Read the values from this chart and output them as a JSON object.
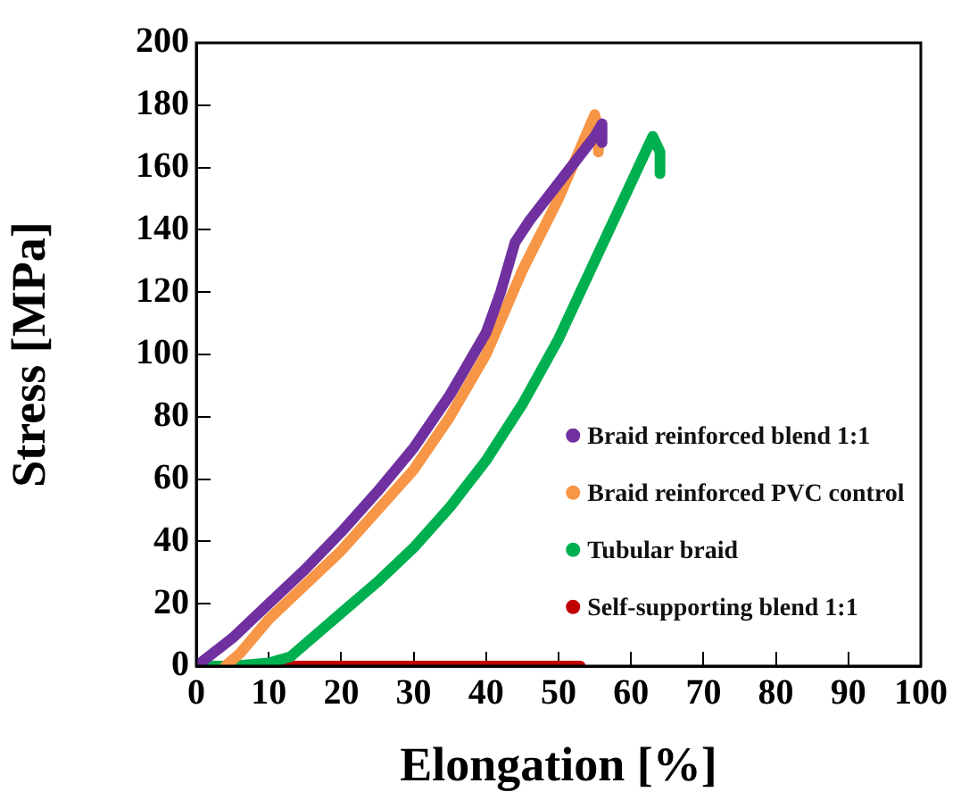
{
  "chart_data": {
    "type": "line",
    "xlabel": "Elongation [%]",
    "ylabel": "Stress [MPa]",
    "xlim": [
      0,
      100
    ],
    "ylim": [
      0,
      200
    ],
    "xticks": [
      0,
      10,
      20,
      30,
      40,
      50,
      60,
      70,
      80,
      90,
      100
    ],
    "yticks": [
      0,
      20,
      40,
      60,
      80,
      100,
      120,
      140,
      160,
      180,
      200
    ],
    "grid": false,
    "legend": "right",
    "marker": "none",
    "line_style": "solid",
    "series": [
      {
        "name": "Braid reinforced blend 1:1",
        "color": "#7030a0",
        "x": [
          0,
          5,
          10,
          15,
          20,
          25,
          30,
          35,
          40,
          42,
          44,
          46,
          50,
          55,
          56,
          56
        ],
        "values": [
          0,
          9,
          20,
          31,
          43,
          56,
          70,
          87,
          107,
          120,
          136,
          143,
          155,
          170,
          174,
          168
        ]
      },
      {
        "name": "Braid reinforced PVC control",
        "color": "#f79646",
        "x": [
          4,
          6,
          10,
          15,
          20,
          25,
          30,
          35,
          40,
          45,
          50,
          55,
          55.5,
          55.5
        ],
        "values": [
          0,
          4,
          15,
          26,
          37,
          50,
          63,
          80,
          100,
          127,
          150,
          177,
          172,
          165
        ]
      },
      {
        "name": "Tubular braid",
        "color": "#00b050",
        "x": [
          0,
          5,
          10,
          13,
          15,
          20,
          25,
          30,
          35,
          40,
          45,
          50,
          55,
          60,
          62,
          63,
          64,
          64
        ],
        "values": [
          0,
          0,
          1,
          3,
          7,
          17,
          27,
          38,
          51,
          66,
          84,
          105,
          130,
          155,
          165,
          170,
          165,
          158
        ]
      },
      {
        "name": "Self-supporting blend 1:1",
        "color": "#c00000",
        "x": [
          0,
          10,
          20,
          30,
          40,
          50,
          53
        ],
        "values": [
          0,
          0,
          0,
          0,
          0,
          0,
          0
        ]
      }
    ]
  }
}
